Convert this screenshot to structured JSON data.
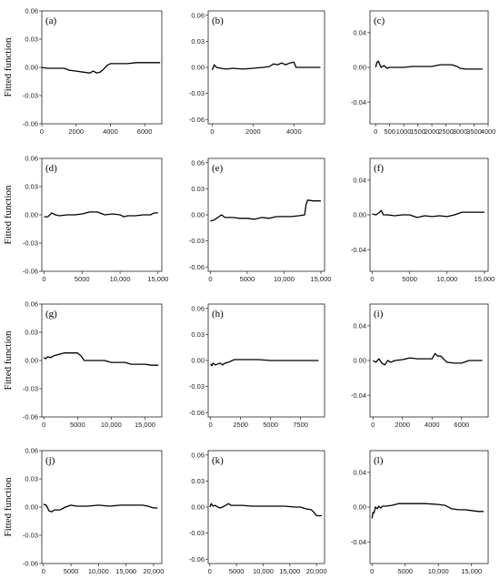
{
  "figure": {
    "ylabel": "Fitted function"
  },
  "chart_data": [
    {
      "type": "line",
      "panel": "(a)",
      "xlim": [
        0,
        7000
      ],
      "ylim": [
        -0.06,
        0.06
      ],
      "xticks": [
        0,
        2000,
        4000,
        6000
      ],
      "xtick_labels": [
        "0",
        "2000",
        "4000",
        "6000"
      ],
      "yticks": [
        -0.06,
        -0.03,
        0.0,
        0.03,
        0.06
      ],
      "ytick_labels": [
        "-0.06",
        "-0.03",
        "0.00",
        "0.03",
        "0.06"
      ],
      "x": [
        0,
        300,
        600,
        1000,
        1300,
        1600,
        2000,
        2400,
        2800,
        3000,
        3200,
        3400,
        3600,
        3800,
        4000,
        4500,
        5000,
        5500,
        6000,
        6500,
        6900
      ],
      "y": [
        0.0,
        -0.001,
        -0.001,
        -0.001,
        -0.001,
        -0.003,
        -0.004,
        -0.005,
        -0.006,
        -0.004,
        -0.006,
        -0.005,
        -0.002,
        0.002,
        0.004,
        0.004,
        0.004,
        0.005,
        0.005,
        0.005,
        0.005
      ]
    },
    {
      "type": "line",
      "panel": "(b)",
      "xlim": [
        -200,
        5500
      ],
      "ylim": [
        -0.065,
        0.065
      ],
      "xticks": [
        0,
        2000,
        4000
      ],
      "xtick_labels": [
        "0",
        "2000",
        "4000"
      ],
      "yticks": [
        -0.06,
        -0.03,
        0.0,
        0.03,
        0.06
      ],
      "ytick_labels": [
        "-0.06",
        "-0.03",
        "0.00",
        "0.03",
        "0.06"
      ],
      "x": [
        0,
        100,
        200,
        400,
        700,
        1000,
        1500,
        2000,
        2500,
        2800,
        3000,
        3200,
        3400,
        3600,
        3800,
        4000,
        4100,
        4300,
        4600,
        5000,
        5300
      ],
      "y": [
        -0.003,
        0.003,
        0.0,
        -0.001,
        -0.002,
        -0.001,
        -0.002,
        -0.001,
        0.0,
        0.001,
        0.004,
        0.003,
        0.005,
        0.003,
        0.005,
        0.006,
        0.0,
        0.0,
        0.0,
        0.0,
        0.0
      ]
    },
    {
      "type": "line",
      "panel": "(c)",
      "xlim": [
        -200,
        4000
      ],
      "ylim": [
        -0.065,
        0.065
      ],
      "xticks": [
        0,
        500,
        1000,
        1500,
        2000,
        2500,
        3000,
        3500,
        4000
      ],
      "xtick_labels": [
        "0",
        "500",
        "1000",
        "1500",
        "2000",
        "2500",
        "3000",
        "3500",
        "4000"
      ],
      "yticks": [
        -0.04,
        0.0,
        0.04
      ],
      "ytick_labels": [
        "-0.04",
        "0.00",
        "0.04"
      ],
      "x": [
        0,
        50,
        100,
        150,
        200,
        300,
        400,
        500,
        700,
        1000,
        1300,
        1600,
        2000,
        2300,
        2500,
        2700,
        2900,
        3000,
        3200,
        3500,
        3800
      ],
      "y": [
        0.0,
        0.006,
        0.007,
        0.003,
        0.0,
        0.002,
        -0.001,
        0.0,
        0.0,
        0.0,
        0.001,
        0.001,
        0.001,
        0.003,
        0.003,
        0.003,
        0.001,
        -0.001,
        -0.002,
        -0.002,
        -0.002
      ]
    },
    {
      "type": "line",
      "panel": "(d)",
      "xlim": [
        -300,
        15500
      ],
      "ylim": [
        -0.06,
        0.06
      ],
      "xticks": [
        0,
        5000,
        10000,
        15000
      ],
      "xtick_labels": [
        "0",
        "5000",
        "10,000",
        "15,000"
      ],
      "yticks": [
        -0.06,
        -0.03,
        0.0,
        0.03,
        0.06
      ],
      "ytick_labels": [
        "-0.06",
        "-0.03",
        "0.00",
        "0.03",
        "0.06"
      ],
      "x": [
        0,
        500,
        1000,
        1500,
        2000,
        3000,
        4000,
        5000,
        6000,
        7000,
        8000,
        9000,
        10000,
        10500,
        11000,
        12000,
        13000,
        14000,
        14500,
        15000
      ],
      "y": [
        -0.002,
        -0.002,
        0.002,
        0.0,
        -0.001,
        0.0,
        0.0,
        0.001,
        0.003,
        0.003,
        0.0,
        0.001,
        0.0,
        -0.002,
        -0.001,
        -0.001,
        0.0,
        0.0,
        0.002,
        0.002
      ]
    },
    {
      "type": "line",
      "panel": "(e)",
      "xlim": [
        -300,
        15500
      ],
      "ylim": [
        -0.065,
        0.065
      ],
      "xticks": [
        0,
        5000,
        10000,
        15000
      ],
      "xtick_labels": [
        "0",
        "5000",
        "10,000",
        "15,000"
      ],
      "yticks": [
        -0.06,
        -0.03,
        0.0,
        0.03,
        0.06
      ],
      "ytick_labels": [
        "-0.06",
        "-0.03",
        "0.00",
        "0.03",
        "0.06"
      ],
      "x": [
        0,
        500,
        1000,
        1500,
        2000,
        3000,
        4000,
        5000,
        6000,
        7000,
        8000,
        9000,
        10000,
        11000,
        12000,
        12800,
        13000,
        13200,
        14000,
        15000
      ],
      "y": [
        -0.007,
        -0.006,
        -0.003,
        0.0,
        -0.003,
        -0.003,
        -0.004,
        -0.004,
        -0.005,
        -0.003,
        -0.004,
        -0.002,
        -0.002,
        -0.002,
        -0.001,
        0.0,
        0.012,
        0.017,
        0.016,
        0.016
      ]
    },
    {
      "type": "line",
      "panel": "(f)",
      "xlim": [
        -300,
        15500
      ],
      "ylim": [
        -0.065,
        0.065
      ],
      "xticks": [
        0,
        5000,
        10000,
        15000
      ],
      "xtick_labels": [
        "0",
        "5000",
        "10,000",
        "15,000"
      ],
      "yticks": [
        -0.04,
        0.0,
        0.04
      ],
      "ytick_labels": [
        "-0.04",
        "0.00",
        "0.04"
      ],
      "x": [
        0,
        500,
        1000,
        1200,
        1500,
        2000,
        3000,
        4000,
        5000,
        6000,
        7000,
        8000,
        9000,
        10000,
        11000,
        12000,
        13000,
        14000,
        15000
      ],
      "y": [
        0.001,
        0.0,
        0.003,
        0.005,
        0.0,
        0.0,
        -0.001,
        0.0,
        0.0,
        -0.003,
        -0.001,
        -0.002,
        -0.001,
        -0.002,
        0.0,
        0.003,
        0.003,
        0.003,
        0.003
      ]
    },
    {
      "type": "line",
      "panel": "(g)",
      "xlim": [
        -300,
        17500
      ],
      "ylim": [
        -0.06,
        0.06
      ],
      "xticks": [
        0,
        5000,
        10000,
        15000
      ],
      "xtick_labels": [
        "0",
        "5000",
        "10,000",
        "15,000"
      ],
      "yticks": [
        -0.06,
        -0.03,
        0.0,
        0.03,
        0.06
      ],
      "ytick_labels": [
        "-0.06",
        "-0.03",
        "0.00",
        "0.03",
        "0.06"
      ],
      "x": [
        0,
        300,
        600,
        1000,
        1500,
        2000,
        3000,
        4000,
        5000,
        5500,
        6000,
        7000,
        8000,
        9000,
        10000,
        11000,
        12000,
        13000,
        14000,
        15000,
        16000,
        17000
      ],
      "y": [
        0.003,
        0.002,
        0.004,
        0.003,
        0.005,
        0.006,
        0.008,
        0.008,
        0.008,
        0.005,
        0.0,
        0.0,
        0.0,
        0.0,
        -0.002,
        -0.002,
        -0.002,
        -0.004,
        -0.004,
        -0.004,
        -0.005,
        -0.005
      ]
    },
    {
      "type": "line",
      "panel": "(h)",
      "xlim": [
        -200,
        9500
      ],
      "ylim": [
        -0.065,
        0.065
      ],
      "xticks": [
        0,
        2500,
        5000,
        7500
      ],
      "xtick_labels": [
        "0",
        "2500",
        "5000",
        "7500"
      ],
      "yticks": [
        -0.06,
        -0.03,
        0.0,
        0.03,
        0.06
      ],
      "ytick_labels": [
        "-0.06",
        "-0.03",
        "0.00",
        "0.03",
        "0.06"
      ],
      "x": [
        0,
        100,
        200,
        400,
        600,
        800,
        1000,
        1200,
        1500,
        1800,
        2000,
        2500,
        3000,
        4000,
        5000,
        6000,
        7000,
        8000,
        9000
      ],
      "y": [
        -0.004,
        -0.006,
        -0.003,
        -0.005,
        -0.004,
        -0.003,
        -0.005,
        -0.003,
        -0.002,
        0.0,
        0.001,
        0.001,
        0.001,
        0.001,
        0.0,
        0.0,
        0.0,
        0.0,
        0.0
      ]
    },
    {
      "type": "line",
      "panel": "(i)",
      "xlim": [
        -200,
        7800
      ],
      "ylim": [
        -0.065,
        0.065
      ],
      "xticks": [
        0,
        2000,
        4000,
        6000
      ],
      "xtick_labels": [
        "0",
        "2000",
        "4000",
        "6000"
      ],
      "yticks": [
        -0.04,
        0.0,
        0.04
      ],
      "ytick_labels": [
        "-0.04",
        "0.00",
        "0.04"
      ],
      "x": [
        0,
        200,
        400,
        600,
        800,
        1000,
        1200,
        1500,
        2000,
        2500,
        3000,
        3500,
        4000,
        4200,
        4400,
        4600,
        5000,
        5500,
        6000,
        6500,
        7000,
        7400
      ],
      "y": [
        0.0,
        -0.002,
        0.002,
        -0.003,
        -0.005,
        0.0,
        -0.002,
        0.0,
        0.001,
        0.003,
        0.002,
        0.002,
        0.002,
        0.008,
        0.005,
        0.005,
        -0.002,
        -0.003,
        -0.003,
        0.0,
        0.0,
        0.0
      ]
    },
    {
      "type": "line",
      "panel": "(j)",
      "xlim": [
        -300,
        21500
      ],
      "ylim": [
        -0.06,
        0.06
      ],
      "xticks": [
        0,
        5000,
        10000,
        15000,
        20000
      ],
      "xtick_labels": [
        "0",
        "5000",
        "10,000",
        "15,000",
        "20,000"
      ],
      "yticks": [
        -0.06,
        -0.03,
        0.0,
        0.03,
        0.06
      ],
      "ytick_labels": [
        "-0.06",
        "-0.03",
        "0.00",
        "0.03",
        "0.06"
      ],
      "x": [
        0,
        500,
        1000,
        1500,
        2000,
        3000,
        4000,
        5000,
        6000,
        8000,
        10000,
        12000,
        14000,
        16000,
        18000,
        19000,
        20000,
        20700
      ],
      "y": [
        0.003,
        0.002,
        -0.004,
        -0.005,
        -0.003,
        -0.003,
        0.0,
        0.002,
        0.001,
        0.001,
        0.002,
        0.001,
        0.002,
        0.002,
        0.002,
        0.001,
        -0.001,
        -0.001
      ]
    },
    {
      "type": "line",
      "panel": "(k)",
      "xlim": [
        -300,
        21500
      ],
      "ylim": [
        -0.065,
        0.065
      ],
      "xticks": [
        0,
        5000,
        10000,
        15000,
        20000
      ],
      "xtick_labels": [
        "0",
        "5000",
        "10,000",
        "15,000",
        "20,000"
      ],
      "yticks": [
        -0.06,
        -0.03,
        0.0,
        0.03,
        0.06
      ],
      "ytick_labels": [
        "-0.06",
        "-0.03",
        "0.00",
        "0.03",
        "0.06"
      ],
      "x": [
        0,
        300,
        600,
        1000,
        1500,
        2000,
        3000,
        3500,
        4000,
        5000,
        6000,
        8000,
        10000,
        12000,
        14000,
        16000,
        17000,
        18000,
        19000,
        19500,
        20000,
        21000
      ],
      "y": [
        0.0,
        0.004,
        0.001,
        0.002,
        0.0,
        -0.001,
        0.002,
        0.004,
        0.002,
        0.002,
        0.002,
        0.001,
        0.001,
        0.001,
        0.001,
        0.0,
        0.0,
        -0.002,
        -0.003,
        -0.006,
        -0.01,
        -0.01
      ]
    },
    {
      "type": "line",
      "panel": "(l)",
      "xlim": [
        -300,
        17500
      ],
      "ylim": [
        -0.065,
        0.065
      ],
      "xticks": [
        0,
        5000,
        10000,
        15000
      ],
      "xtick_labels": [
        "0",
        "5000",
        "10,000",
        "15,000"
      ],
      "yticks": [
        -0.04,
        0.0,
        0.04
      ],
      "ytick_labels": [
        "-0.04",
        "0.00",
        "0.04"
      ],
      "x": [
        0,
        150,
        300,
        500,
        800,
        1000,
        1300,
        1600,
        2000,
        3000,
        4000,
        5000,
        6000,
        8000,
        10000,
        11000,
        12000,
        13000,
        14000,
        15000,
        16000,
        16800
      ],
      "y": [
        -0.013,
        -0.006,
        -0.007,
        0.0,
        -0.002,
        0.001,
        -0.001,
        0.001,
        0.001,
        0.002,
        0.004,
        0.004,
        0.004,
        0.004,
        0.003,
        0.002,
        -0.002,
        -0.003,
        -0.003,
        -0.004,
        -0.005,
        -0.005
      ]
    }
  ]
}
